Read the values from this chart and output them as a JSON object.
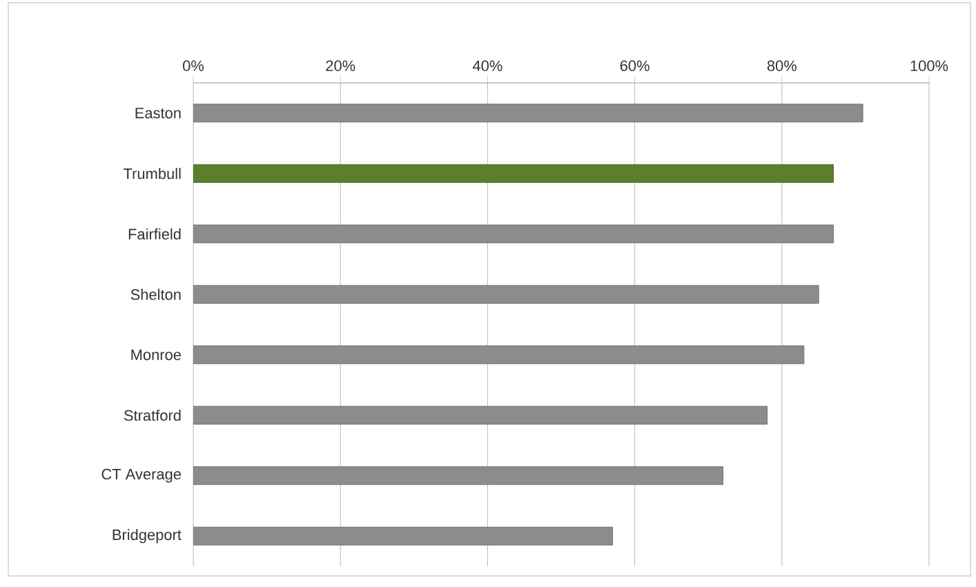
{
  "chart_data": {
    "type": "bar",
    "orientation": "horizontal",
    "categories": [
      "Easton",
      "Trumbull",
      "Fairfield",
      "Shelton",
      "Monroe",
      "Stratford",
      "CT Average",
      "Bridgeport"
    ],
    "values": [
      91,
      87,
      87,
      85,
      83,
      78,
      72,
      57
    ],
    "colors": [
      "#8c8c8c",
      "#5b7f2a",
      "#8c8c8c",
      "#8c8c8c",
      "#8c8c8c",
      "#8c8c8c",
      "#8c8c8c",
      "#8c8c8c"
    ],
    "xlim": [
      0,
      100
    ],
    "xticks": [
      {
        "value": 0,
        "label": "0%"
      },
      {
        "value": 20,
        "label": "20%"
      },
      {
        "value": 40,
        "label": "40%"
      },
      {
        "value": 60,
        "label": "60%"
      },
      {
        "value": 80,
        "label": "80%"
      },
      {
        "value": 100,
        "label": "100%"
      }
    ],
    "grid": "x"
  }
}
